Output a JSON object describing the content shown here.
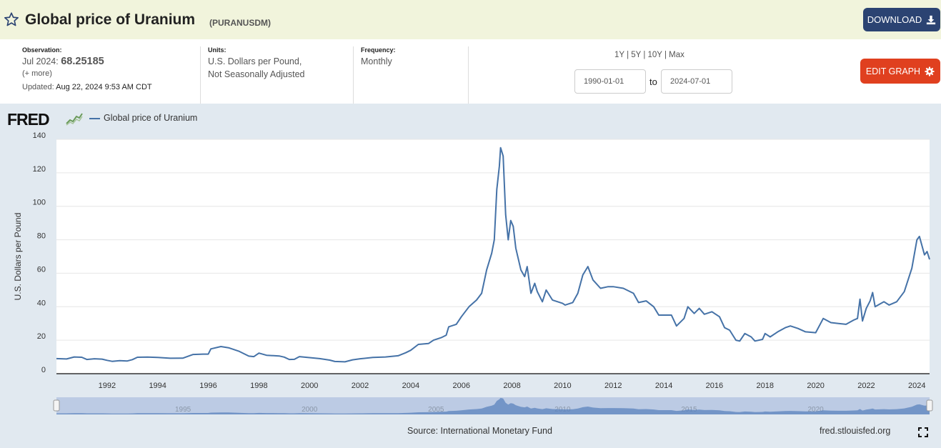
{
  "header": {
    "title": "Global price of Uranium",
    "series_id": "(PURANUSDM)",
    "download_label": "DOWNLOAD"
  },
  "meta": {
    "observation_label": "Observation:",
    "observation_date": "Jul 2024:",
    "observation_value": "68.25185",
    "more": "(+ more)",
    "updated_label": "Updated:",
    "updated_value": "Aug 22, 2024 9:53 AM CDT",
    "units_label": "Units:",
    "units_line1": "U.S. Dollars per Pound,",
    "units_line2": "Not Seasonally Adjusted",
    "frequency_label": "Frequency:",
    "frequency_value": "Monthly"
  },
  "range": {
    "links": [
      "1Y",
      "5Y",
      "10Y",
      "Max"
    ],
    "start": "1990-01-01",
    "to": "to",
    "end": "2024-07-01"
  },
  "edit_label": "EDIT GRAPH",
  "fred_logo": "FRED",
  "source": "Source: International Monetary Fund",
  "url": "fred.stlouisfed.org",
  "colors": {
    "line": "#4572a7",
    "download": "#2b4372",
    "edit": "#e0401f",
    "header_bg": "#f1f4dc",
    "chart_bg": "#e1e9f0"
  },
  "icons": [
    "star-icon",
    "download-icon",
    "gear-icon",
    "fred-logo-mark",
    "fullscreen-icon"
  ],
  "chart_data": {
    "type": "line",
    "series": [
      {
        "name": "Global price of Uranium",
        "points": [
          [
            1990.0,
            9.0
          ],
          [
            1990.4,
            8.8
          ],
          [
            1990.7,
            10.0
          ],
          [
            1991.0,
            9.8
          ],
          [
            1991.2,
            8.5
          ],
          [
            1991.5,
            8.9
          ],
          [
            1991.8,
            8.7
          ],
          [
            1992.0,
            8.0
          ],
          [
            1992.2,
            7.4
          ],
          [
            1992.5,
            7.8
          ],
          [
            1992.8,
            7.6
          ],
          [
            1993.0,
            8.4
          ],
          [
            1993.2,
            9.8
          ],
          [
            1993.6,
            9.9
          ],
          [
            1994.0,
            9.7
          ],
          [
            1994.5,
            9.2
          ],
          [
            1995.0,
            9.3
          ],
          [
            1995.4,
            11.5
          ],
          [
            1995.8,
            11.7
          ],
          [
            1996.0,
            11.7
          ],
          [
            1996.1,
            14.8
          ],
          [
            1996.5,
            16.2
          ],
          [
            1996.8,
            15.5
          ],
          [
            1997.2,
            13.5
          ],
          [
            1997.6,
            10.5
          ],
          [
            1997.8,
            10.2
          ],
          [
            1998.0,
            12.3
          ],
          [
            1998.3,
            11.0
          ],
          [
            1998.8,
            10.6
          ],
          [
            1999.0,
            9.9
          ],
          [
            1999.2,
            8.5
          ],
          [
            1999.4,
            8.6
          ],
          [
            1999.6,
            10.2
          ],
          [
            2000.0,
            9.6
          ],
          [
            2000.4,
            9.0
          ],
          [
            2000.8,
            8.1
          ],
          [
            2001.0,
            7.3
          ],
          [
            2001.4,
            7.1
          ],
          [
            2001.7,
            8.3
          ],
          [
            2002.0,
            8.9
          ],
          [
            2002.5,
            9.7
          ],
          [
            2003.0,
            10.0
          ],
          [
            2003.5,
            10.7
          ],
          [
            2003.8,
            12.5
          ],
          [
            2004.0,
            14.0
          ],
          [
            2004.3,
            17.5
          ],
          [
            2004.7,
            18.0
          ],
          [
            2004.9,
            20.0
          ],
          [
            2005.2,
            21.5
          ],
          [
            2005.4,
            23.0
          ],
          [
            2005.5,
            28.0
          ],
          [
            2005.8,
            29.5
          ],
          [
            2006.0,
            34.0
          ],
          [
            2006.3,
            40.0
          ],
          [
            2006.6,
            44.0
          ],
          [
            2006.8,
            48.0
          ],
          [
            2007.0,
            62.0
          ],
          [
            2007.2,
            72.0
          ],
          [
            2007.3,
            80.0
          ],
          [
            2007.4,
            110.0
          ],
          [
            2007.5,
            124.0
          ],
          [
            2007.55,
            135.0
          ],
          [
            2007.65,
            130.0
          ],
          [
            2007.75,
            95.0
          ],
          [
            2007.85,
            80.0
          ],
          [
            2007.95,
            91.5
          ],
          [
            2008.05,
            88.0
          ],
          [
            2008.15,
            75.0
          ],
          [
            2008.35,
            62.0
          ],
          [
            2008.5,
            58.0
          ],
          [
            2008.6,
            64.0
          ],
          [
            2008.75,
            48.0
          ],
          [
            2008.9,
            54.0
          ],
          [
            2009.0,
            49.0
          ],
          [
            2009.2,
            43.0
          ],
          [
            2009.35,
            50.0
          ],
          [
            2009.6,
            44.0
          ],
          [
            2010.0,
            42.0
          ],
          [
            2010.1,
            41.0
          ],
          [
            2010.4,
            42.5
          ],
          [
            2010.6,
            48.0
          ],
          [
            2010.8,
            59.0
          ],
          [
            2011.0,
            64.0
          ],
          [
            2011.2,
            56.0
          ],
          [
            2011.5,
            51.0
          ],
          [
            2011.8,
            52.0
          ],
          [
            2012.0,
            52.0
          ],
          [
            2012.4,
            51.0
          ],
          [
            2012.8,
            48.0
          ],
          [
            2013.0,
            42.5
          ],
          [
            2013.3,
            43.5
          ],
          [
            2013.6,
            40.0
          ],
          [
            2013.8,
            35.0
          ],
          [
            2014.0,
            35.0
          ],
          [
            2014.3,
            35.0
          ],
          [
            2014.5,
            28.5
          ],
          [
            2014.8,
            33.0
          ],
          [
            2014.95,
            40.0
          ],
          [
            2015.2,
            36.0
          ],
          [
            2015.4,
            39.0
          ],
          [
            2015.6,
            35.5
          ],
          [
            2015.9,
            37.0
          ],
          [
            2016.2,
            34.0
          ],
          [
            2016.4,
            27.5
          ],
          [
            2016.6,
            26.0
          ],
          [
            2016.85,
            20.0
          ],
          [
            2017.0,
            19.5
          ],
          [
            2017.2,
            24.0
          ],
          [
            2017.45,
            22.0
          ],
          [
            2017.6,
            19.5
          ],
          [
            2017.9,
            20.5
          ],
          [
            2018.0,
            24.0
          ],
          [
            2018.2,
            22.0
          ],
          [
            2018.5,
            25.0
          ],
          [
            2018.8,
            27.5
          ],
          [
            2019.0,
            28.5
          ],
          [
            2019.3,
            27.0
          ],
          [
            2019.6,
            25.0
          ],
          [
            2020.0,
            24.5
          ],
          [
            2020.3,
            33.0
          ],
          [
            2020.6,
            30.5
          ],
          [
            2020.9,
            30.0
          ],
          [
            2021.2,
            29.5
          ],
          [
            2021.5,
            32.0
          ],
          [
            2021.65,
            33.0
          ],
          [
            2021.75,
            44.5
          ],
          [
            2021.85,
            31.5
          ],
          [
            2022.0,
            39.0
          ],
          [
            2022.15,
            43.5
          ],
          [
            2022.25,
            48.5
          ],
          [
            2022.35,
            40.0
          ],
          [
            2022.7,
            43.0
          ],
          [
            2022.9,
            41.0
          ],
          [
            2023.2,
            43.0
          ],
          [
            2023.5,
            49.0
          ],
          [
            2023.8,
            63.0
          ],
          [
            2024.0,
            80.0
          ],
          [
            2024.1,
            82.0
          ],
          [
            2024.3,
            71.0
          ],
          [
            2024.4,
            73.0
          ],
          [
            2024.5,
            68.25
          ]
        ]
      }
    ],
    "xlabel": "",
    "ylabel": "U.S. Dollars per Pound",
    "xlim": [
      1990.0,
      2024.5
    ],
    "ylim": [
      0,
      140
    ],
    "yticks": [
      0,
      20,
      40,
      60,
      80,
      100,
      120,
      140
    ],
    "xticks": [
      1992,
      1994,
      1996,
      1998,
      2000,
      2002,
      2004,
      2006,
      2008,
      2010,
      2012,
      2014,
      2016,
      2018,
      2020,
      2022,
      2024
    ],
    "navigator_ticks": [
      1995,
      2000,
      2005,
      2010,
      2015,
      2020
    ],
    "grid": true,
    "legend": "top-left"
  }
}
